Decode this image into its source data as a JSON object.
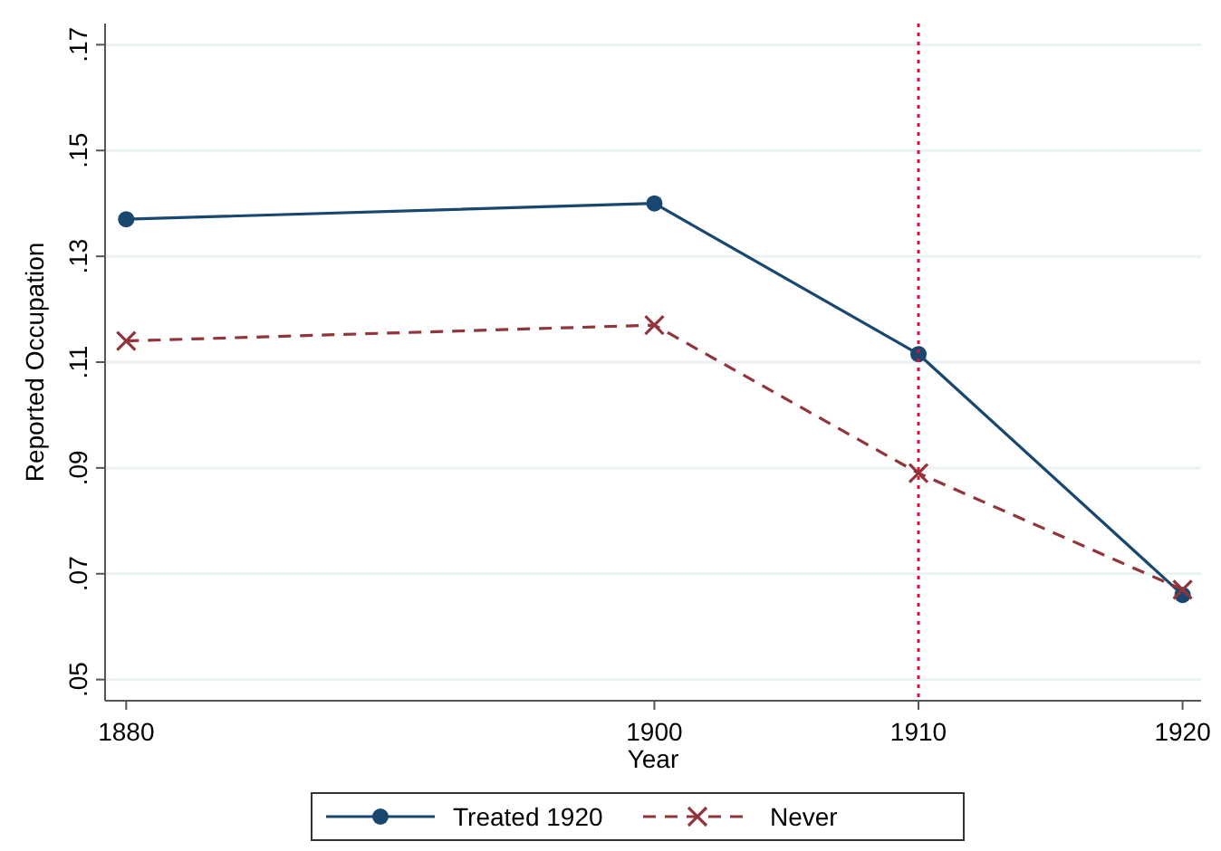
{
  "chart_data": {
    "type": "line",
    "xlabel": "Year",
    "ylabel": "Reported Occupation",
    "x": [
      1880,
      1900,
      1910,
      1920
    ],
    "series": [
      {
        "name": "Treated 1920",
        "color": "#1a476f",
        "values": [
          0.137,
          0.14,
          0.1115,
          0.066
        ],
        "marker": "circle",
        "line_style": "solid"
      },
      {
        "name": "Never",
        "color": "#90353b",
        "values": [
          0.114,
          0.117,
          0.089,
          0.067
        ],
        "marker": "cross",
        "line_style": "dashed"
      }
    ],
    "xlim": [
      1879.2,
      1920.7
    ],
    "xticks": [
      1880,
      1900,
      1910,
      1920
    ],
    "ylim": [
      0.046,
      0.174
    ],
    "yticks": [
      {
        "value": 0.05,
        "label": ".05"
      },
      {
        "value": 0.07,
        "label": ".07"
      },
      {
        "value": 0.09,
        "label": ".09"
      },
      {
        "value": 0.11,
        "label": ".11"
      },
      {
        "value": 0.13,
        "label": ".13"
      },
      {
        "value": 0.15,
        "label": ".15"
      },
      {
        "value": 0.17,
        "label": ".17"
      }
    ],
    "grid": "y",
    "legend": "bottom",
    "ref_lines": [
      {
        "axis": "x",
        "value": 1910,
        "color": "#e0103a",
        "line_style": "dotted"
      }
    ]
  }
}
